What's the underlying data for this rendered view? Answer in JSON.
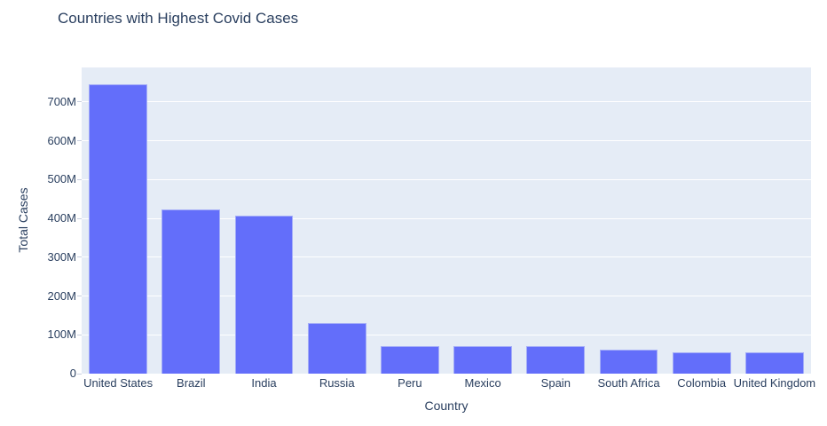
{
  "title": "Countries with Highest Covid Cases",
  "colors": {
    "text": "#2a3f5f",
    "bar_fill": "#636efa",
    "bar_edge": "#a4adf8",
    "plot_background": "#e5ecf6",
    "gridline": "#ffffff",
    "tick_mark": "#c8cfdf",
    "paper_background": "#ffffff"
  },
  "chart_data": {
    "type": "bar",
    "title": "Countries with Highest Covid Cases",
    "xlabel": "Country",
    "ylabel": "Total Cases",
    "categories": [
      "United States",
      "Brazil",
      "India",
      "Russia",
      "Peru",
      "Mexico",
      "Spain",
      "South Africa",
      "Colombia",
      "United Kingdom"
    ],
    "values_millions": [
      746,
      424,
      408,
      130,
      72,
      72,
      70,
      61,
      56,
      55
    ],
    "ylim_millions": [
      0,
      789
    ],
    "ytick_step_millions": 100,
    "ytick_labels": [
      "0",
      "100M",
      "200M",
      "300M",
      "400M",
      "500M",
      "600M",
      "700M"
    ],
    "grid": true,
    "legend_position": "none",
    "bar_gap_fraction": 0.2
  }
}
